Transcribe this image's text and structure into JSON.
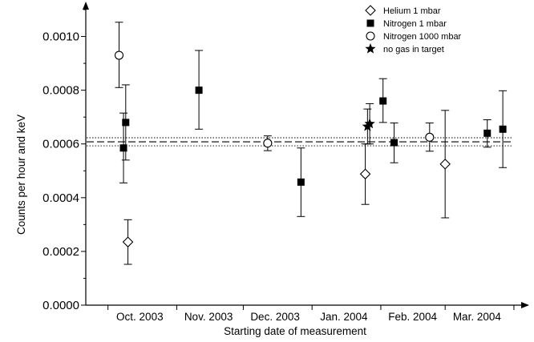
{
  "chart_data": {
    "type": "scatter",
    "xlabel": "Starting date of measurement",
    "ylabel": "Counts per hour and keV",
    "ylim": [
      0.0,
      0.0011
    ],
    "y_ticks": [
      "0.0000",
      "0.0002",
      "0.0004",
      "0.0006",
      "0.0008",
      "0.0010"
    ],
    "x_ticks": [
      "Oct. 2003",
      "Nov. 2003",
      "Dec. 2003",
      "Jan. 2004",
      "Feb. 2004",
      "Mar. 2004"
    ],
    "x_axis_unit": "days since 1 Oct 2003",
    "xlim": [
      -10,
      187
    ],
    "x_tick_positions": [
      10,
      41,
      71,
      102,
      133,
      162
    ],
    "legend_position": "top-right",
    "series": [
      {
        "name": "Helium 1 mbar",
        "marker": "diamond-open",
        "points": [
          {
            "x": 9,
            "y": 0.000235,
            "ylo": 0.000152,
            "yhi": 0.000318
          },
          {
            "x": 116,
            "y": 0.000488,
            "ylo": 0.000375,
            "yhi": 0.0006
          },
          {
            "x": 152,
            "y": 0.000525,
            "ylo": 0.000325,
            "yhi": 0.000725
          }
        ]
      },
      {
        "name": "Nitrogen 1 mbar",
        "marker": "square-filled",
        "points": [
          {
            "x": 7,
            "y": 0.000585,
            "ylo": 0.000455,
            "yhi": 0.000715
          },
          {
            "x": 8,
            "y": 0.00068,
            "ylo": 0.00054,
            "yhi": 0.00082
          },
          {
            "x": 41,
            "y": 0.0008,
            "ylo": 0.000655,
            "yhi": 0.000948
          },
          {
            "x": 87,
            "y": 0.000458,
            "ylo": 0.00033,
            "yhi": 0.000585
          },
          {
            "x": 124,
            "y": 0.00076,
            "ylo": 0.00068,
            "yhi": 0.000843
          },
          {
            "x": 129,
            "y": 0.000605,
            "ylo": 0.00053,
            "yhi": 0.000678
          },
          {
            "x": 171,
            "y": 0.00064,
            "ylo": 0.000588,
            "yhi": 0.00069
          },
          {
            "x": 178,
            "y": 0.000655,
            "ylo": 0.000512,
            "yhi": 0.000798
          }
        ]
      },
      {
        "name": "Nitrogen 1000 mbar",
        "marker": "circle-open",
        "points": [
          {
            "x": 5,
            "y": 0.00093,
            "ylo": 0.00081,
            "yhi": 0.001053
          },
          {
            "x": 72,
            "y": 0.000603,
            "ylo": 0.000575,
            "yhi": 0.00063
          },
          {
            "x": 145,
            "y": 0.000625,
            "ylo": 0.000573,
            "yhi": 0.000678
          }
        ]
      },
      {
        "name": "no gas in target",
        "marker": "star-filled",
        "points": [
          {
            "x": 117,
            "y": 0.000665,
            "ylo": 0.0006,
            "yhi": 0.00073
          },
          {
            "x": 118,
            "y": 0.000675,
            "ylo": 0.0006,
            "yhi": 0.00075
          }
        ]
      }
    ],
    "reference_lines": [
      {
        "y": 0.000608,
        "style": "dashed"
      },
      {
        "y": 0.000623,
        "style": "dotted"
      },
      {
        "y": 0.000593,
        "style": "dotted"
      }
    ]
  }
}
